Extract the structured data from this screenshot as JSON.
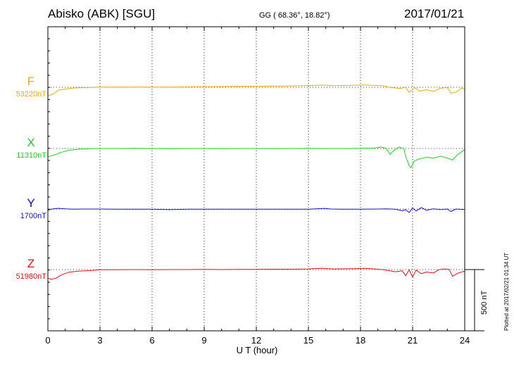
{
  "header": {
    "station": "Abisko (ABK)  [SGU]",
    "coords": "GG ( 68.36°,  18.82°)",
    "date": "2017/01/21"
  },
  "footer": {
    "xlabel": "U T (hour)",
    "plotted": "Plotted at 2017/02/21 01:34 UT",
    "scale_label": "500 nT"
  },
  "colors": {
    "F": "#f2a900",
    "X": "#19d419",
    "Y": "#1010d0",
    "Z": "#e01010"
  },
  "chart_data": {
    "type": "line",
    "xlabel": "U T (hour)",
    "x_range": [
      0,
      24
    ],
    "x_ticks": [
      0,
      3,
      6,
      9,
      12,
      15,
      18,
      21,
      24
    ],
    "grid": "dotted vertical lines every 3 hours; dotted baseline for each component",
    "scale_bar_nT": 500,
    "series": [
      {
        "name": "F",
        "baseline_label": "53220nT",
        "baseline_nT": 53220,
        "color": "#f2a900",
        "points": [
          [
            0,
            53150
          ],
          [
            0.3,
            53165
          ],
          [
            0.6,
            53195
          ],
          [
            1,
            53205
          ],
          [
            1.5,
            53214
          ],
          [
            2,
            53217
          ],
          [
            3,
            53221
          ],
          [
            4,
            53221
          ],
          [
            5,
            53222
          ],
          [
            6,
            53221
          ],
          [
            7,
            53222
          ],
          [
            8,
            53223
          ],
          [
            9,
            53224
          ],
          [
            10,
            53226
          ],
          [
            11,
            53228
          ],
          [
            12,
            53227
          ],
          [
            13,
            53229
          ],
          [
            14,
            53231
          ],
          [
            15,
            53234
          ],
          [
            15.8,
            53238
          ],
          [
            16.5,
            53233
          ],
          [
            17.5,
            53236
          ],
          [
            18.2,
            53239
          ],
          [
            18.8,
            53236
          ],
          [
            19.3,
            53232
          ],
          [
            19.6,
            53222
          ],
          [
            20,
            53214
          ],
          [
            20.3,
            53210
          ],
          [
            20.6,
            53220
          ],
          [
            20.8,
            53178
          ],
          [
            21.1,
            53218
          ],
          [
            21.4,
            53188
          ],
          [
            21.8,
            53200
          ],
          [
            22.2,
            53186
          ],
          [
            22.6,
            53212
          ],
          [
            23,
            53218
          ],
          [
            23.2,
            53172
          ],
          [
            23.5,
            53180
          ],
          [
            23.8,
            53212
          ],
          [
            24,
            53205
          ]
        ]
      },
      {
        "name": "X",
        "baseline_label": "11310nT",
        "baseline_nT": 11310,
        "color": "#19d419",
        "points": [
          [
            0,
            11243
          ],
          [
            0.4,
            11258
          ],
          [
            0.8,
            11280
          ],
          [
            1.2,
            11295
          ],
          [
            1.8,
            11305
          ],
          [
            2.5,
            11308
          ],
          [
            3,
            11310
          ],
          [
            4,
            11310
          ],
          [
            5,
            11311
          ],
          [
            6,
            11310
          ],
          [
            7,
            11309
          ],
          [
            8,
            11310
          ],
          [
            9,
            11310
          ],
          [
            10,
            11309
          ],
          [
            11,
            11310
          ],
          [
            12,
            11310
          ],
          [
            13,
            11309
          ],
          [
            14,
            11310
          ],
          [
            15,
            11311
          ],
          [
            16,
            11310
          ],
          [
            17,
            11310
          ],
          [
            18,
            11311
          ],
          [
            18.8,
            11313
          ],
          [
            19.2,
            11322
          ],
          [
            19.5,
            11310
          ],
          [
            19.7,
            11262
          ],
          [
            19.9,
            11292
          ],
          [
            20.2,
            11322
          ],
          [
            20.5,
            11308
          ],
          [
            20.6,
            11248
          ],
          [
            20.8,
            11170
          ],
          [
            20.9,
            11152
          ],
          [
            21.1,
            11208
          ],
          [
            21.4,
            11226
          ],
          [
            21.8,
            11238
          ],
          [
            22.2,
            11232
          ],
          [
            22.6,
            11248
          ],
          [
            23,
            11232
          ],
          [
            23.3,
            11216
          ],
          [
            23.6,
            11262
          ],
          [
            24,
            11300
          ]
        ]
      },
      {
        "name": "Y",
        "baseline_label": "1700nT",
        "baseline_nT": 1700,
        "color": "#1010d0",
        "points": [
          [
            0,
            1690
          ],
          [
            0.3,
            1702
          ],
          [
            0.6,
            1706
          ],
          [
            1,
            1702
          ],
          [
            1.5,
            1699
          ],
          [
            2,
            1700
          ],
          [
            3,
            1700
          ],
          [
            4,
            1699
          ],
          [
            5,
            1699
          ],
          [
            6,
            1698
          ],
          [
            7,
            1695
          ],
          [
            8,
            1698
          ],
          [
            9,
            1698
          ],
          [
            10,
            1699
          ],
          [
            11,
            1698
          ],
          [
            12,
            1699
          ],
          [
            13,
            1698
          ],
          [
            14,
            1698
          ],
          [
            15,
            1699
          ],
          [
            15.9,
            1705
          ],
          [
            16.3,
            1700
          ],
          [
            17,
            1699
          ],
          [
            18,
            1699
          ],
          [
            19,
            1700
          ],
          [
            19.5,
            1702
          ],
          [
            20,
            1698
          ],
          [
            20.4,
            1686
          ],
          [
            20.6,
            1694
          ],
          [
            20.8,
            1672
          ],
          [
            21,
            1708
          ],
          [
            21.2,
            1684
          ],
          [
            21.5,
            1712
          ],
          [
            21.8,
            1690
          ],
          [
            22.2,
            1701
          ],
          [
            22.6,
            1696
          ],
          [
            23,
            1700
          ],
          [
            23.2,
            1680
          ],
          [
            23.5,
            1700
          ],
          [
            24,
            1696
          ]
        ]
      },
      {
        "name": "Z",
        "baseline_label": "51980nT",
        "baseline_nT": 51980,
        "color": "#e01010",
        "points": [
          [
            0,
            51910
          ],
          [
            0.2,
            51900
          ],
          [
            0.5,
            51912
          ],
          [
            0.8,
            51938
          ],
          [
            1.2,
            51958
          ],
          [
            1.8,
            51968
          ],
          [
            2.5,
            51972
          ],
          [
            3,
            51978
          ],
          [
            4,
            51979
          ],
          [
            5,
            51980
          ],
          [
            6,
            51979
          ],
          [
            7,
            51980
          ],
          [
            8,
            51980
          ],
          [
            9,
            51981
          ],
          [
            10,
            51980
          ],
          [
            11,
            51981
          ],
          [
            12,
            51982
          ],
          [
            13,
            51983
          ],
          [
            14,
            51983
          ],
          [
            15,
            51985
          ],
          [
            15.8,
            51991
          ],
          [
            16.4,
            51985
          ],
          [
            17,
            51986
          ],
          [
            17.8,
            51988
          ],
          [
            18.2,
            51990
          ],
          [
            18.8,
            51986
          ],
          [
            19.3,
            51978
          ],
          [
            19.6,
            51972
          ],
          [
            20,
            51962
          ],
          [
            20.4,
            51970
          ],
          [
            20.6,
            51928
          ],
          [
            20.8,
            51978
          ],
          [
            21,
            51918
          ],
          [
            21.2,
            51976
          ],
          [
            21.5,
            51946
          ],
          [
            21.8,
            51960
          ],
          [
            22.2,
            51952
          ],
          [
            22.5,
            51978
          ],
          [
            22.8,
            51985
          ],
          [
            23.1,
            51982
          ],
          [
            23.3,
            51925
          ],
          [
            23.6,
            51950
          ],
          [
            24,
            51968
          ]
        ]
      }
    ]
  }
}
